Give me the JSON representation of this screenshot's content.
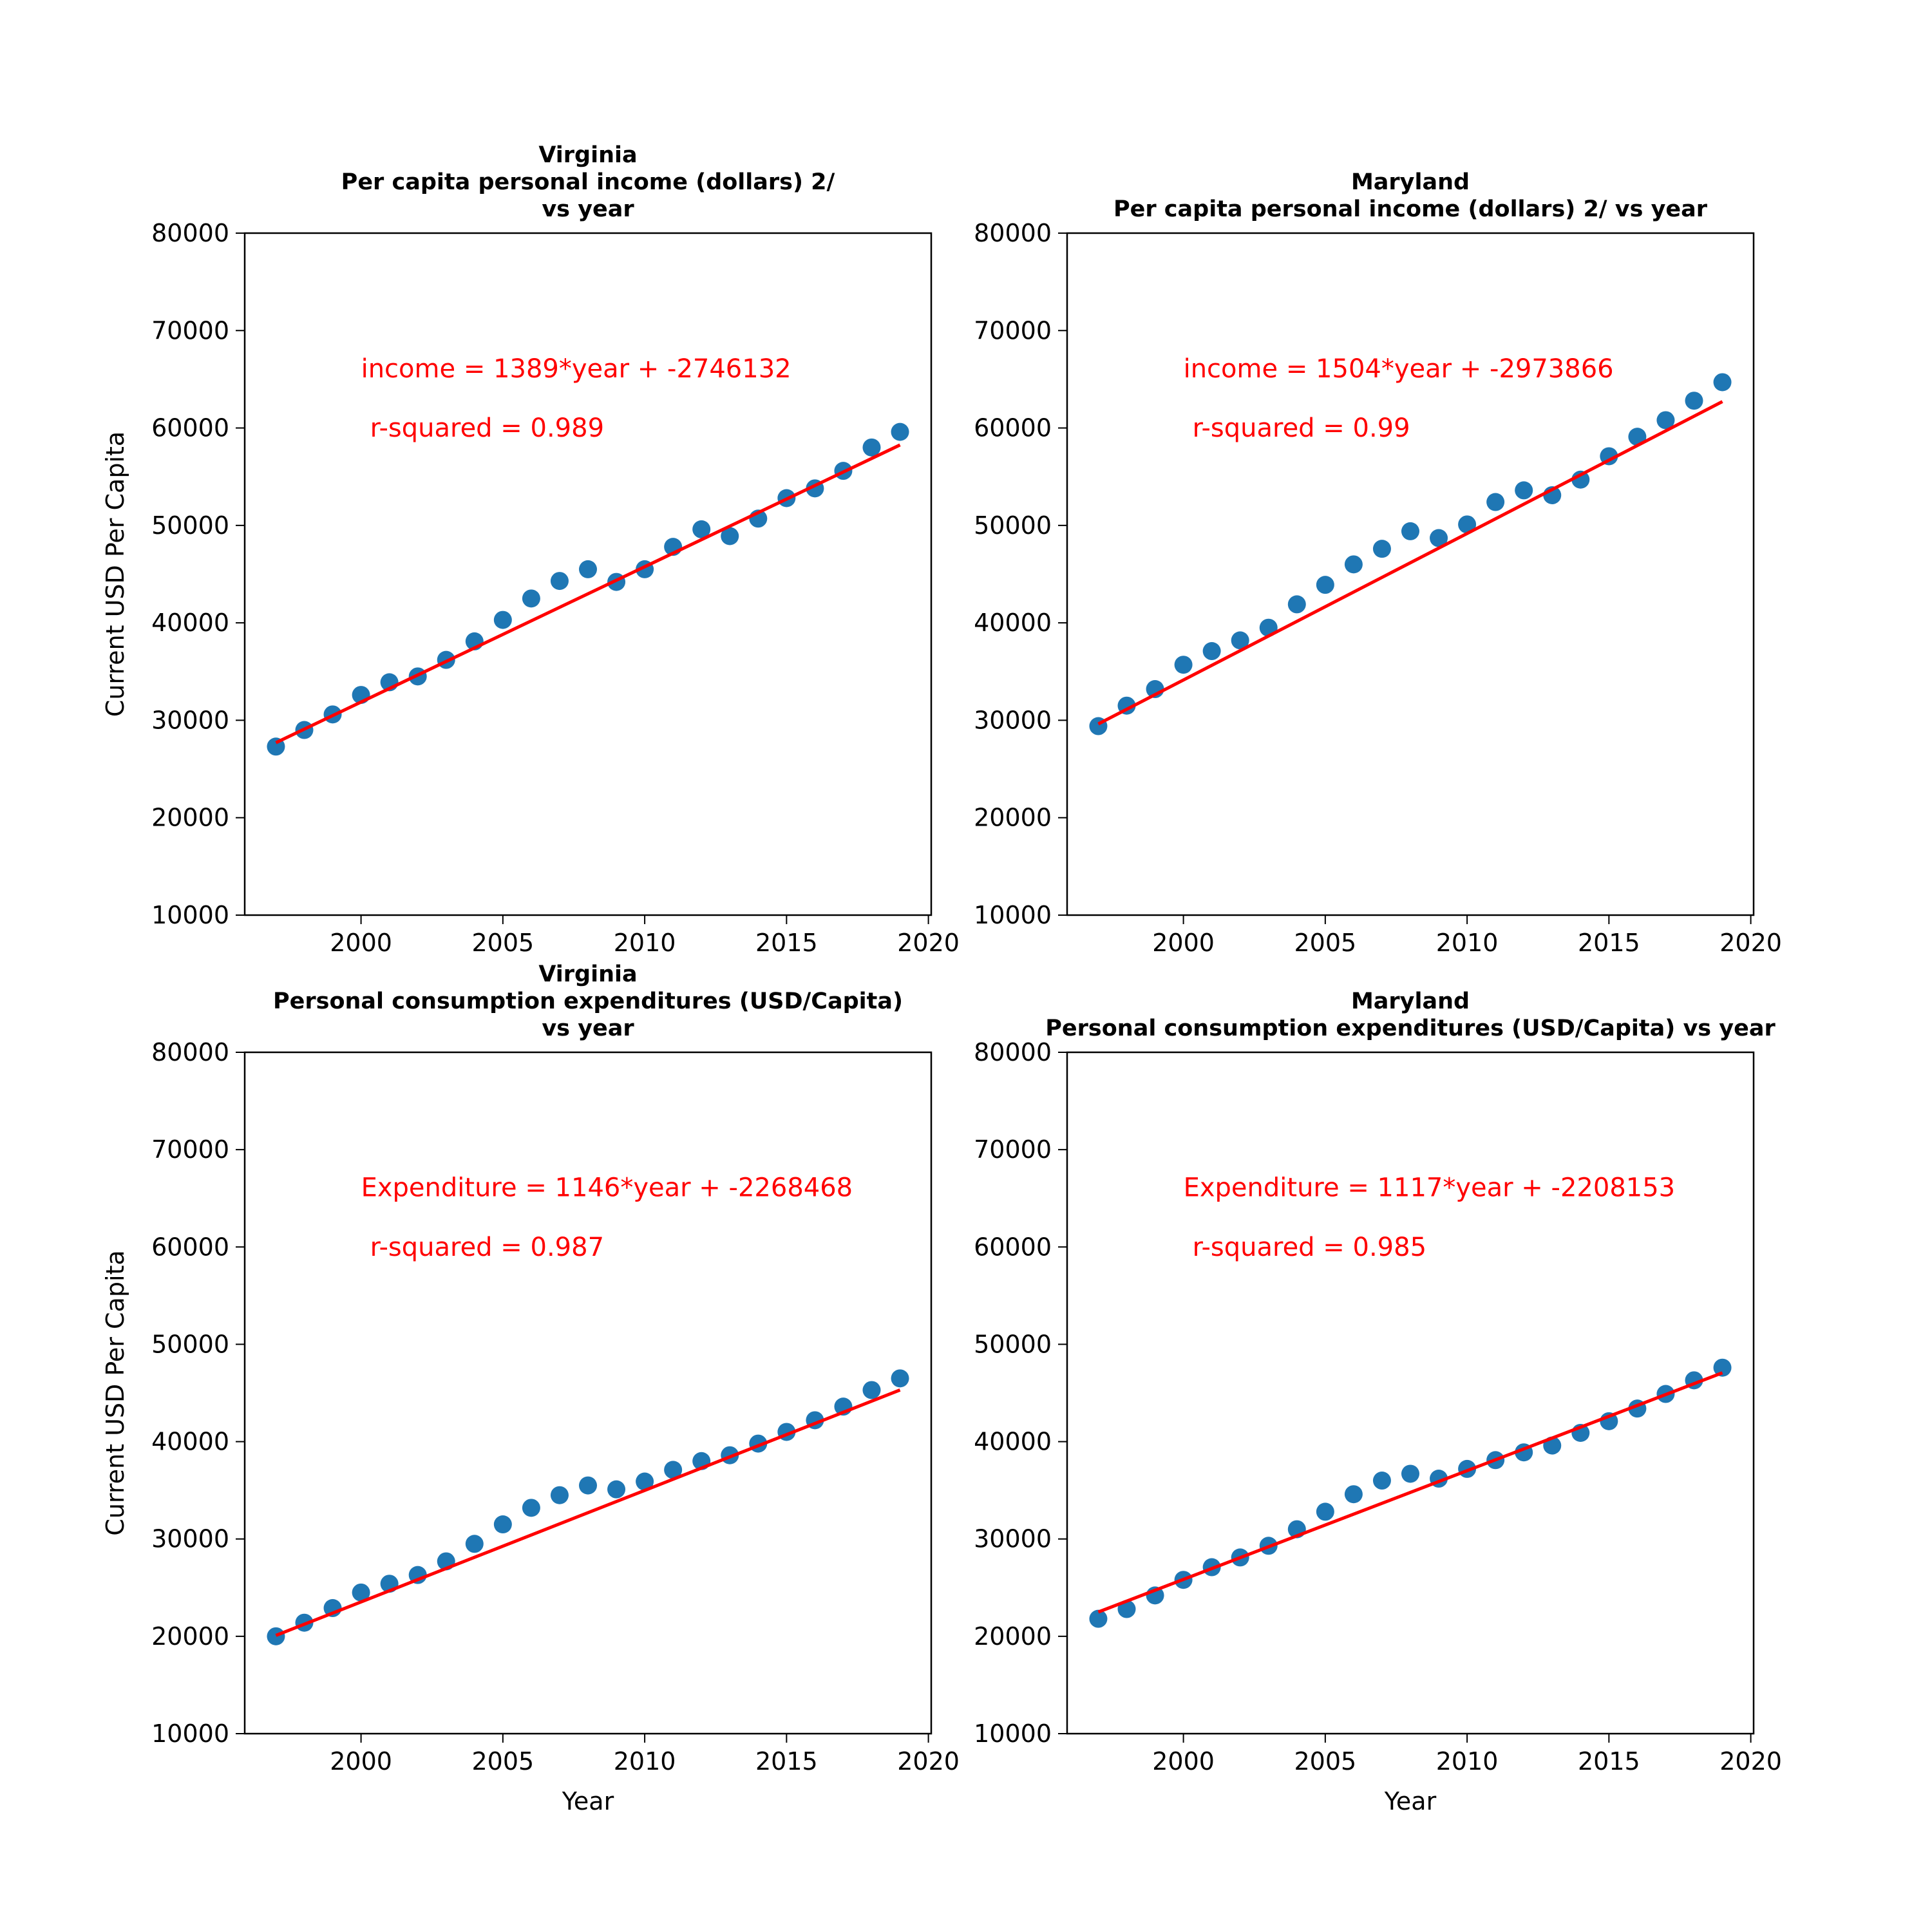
{
  "figure": {
    "background": "#ffffff",
    "marker_color": "#1f77b4",
    "fit_color": "#ff0000"
  },
  "chart_data": [
    {
      "type": "scatter",
      "title": [
        "Virginia",
        "Per capita personal income (dollars) 2/",
        "vs year"
      ],
      "xlabel": "",
      "ylabel": "Current USD Per Capita",
      "xlim": [
        1995.9,
        2020.1
      ],
      "ylim": [
        10000,
        80000
      ],
      "xticks": [
        2000,
        2005,
        2010,
        2015,
        2020
      ],
      "yticks": [
        10000,
        20000,
        30000,
        40000,
        50000,
        60000,
        70000,
        80000
      ],
      "grid": false,
      "series": [
        {
          "x": [
            1997,
            1998,
            1999,
            2000,
            2001,
            2002,
            2003,
            2004,
            2005,
            2006,
            2007,
            2008,
            2009,
            2010,
            2011,
            2012,
            2013,
            2014,
            2015,
            2016,
            2017,
            2018,
            2019
          ],
          "y": [
            27300,
            29000,
            30600,
            32600,
            33900,
            34500,
            36200,
            38100,
            40300,
            42500,
            44300,
            45500,
            44200,
            45500,
            47800,
            49600,
            48900,
            50700,
            52800,
            53800,
            55600,
            58000,
            59600
          ]
        }
      ],
      "fit": {
        "slope": 1389,
        "intercept": -2746132
      },
      "annotations": [
        "income = 1389*year + -2746132",
        "r-squared = 0.989"
      ]
    },
    {
      "type": "scatter",
      "title": [
        "Maryland",
        "Per capita personal income (dollars) 2/ vs year"
      ],
      "xlabel": "",
      "ylabel": "",
      "xlim": [
        1995.9,
        2020.1
      ],
      "ylim": [
        10000,
        80000
      ],
      "xticks": [
        2000,
        2005,
        2010,
        2015,
        2020
      ],
      "yticks": [
        10000,
        20000,
        30000,
        40000,
        50000,
        60000,
        70000,
        80000
      ],
      "grid": false,
      "series": [
        {
          "x": [
            1997,
            1998,
            1999,
            2000,
            2001,
            2002,
            2003,
            2004,
            2005,
            2006,
            2007,
            2008,
            2009,
            2010,
            2011,
            2012,
            2013,
            2014,
            2015,
            2016,
            2017,
            2018,
            2019
          ],
          "y": [
            29400,
            31500,
            33200,
            35700,
            37100,
            38200,
            39500,
            41900,
            43900,
            46000,
            47600,
            49400,
            48700,
            50100,
            52400,
            53600,
            53100,
            54700,
            57100,
            59100,
            60800,
            62800,
            64700
          ]
        }
      ],
      "fit": {
        "slope": 1504,
        "intercept": -2973866
      },
      "annotations": [
        "income = 1504*year + -2973866",
        "r-squared = 0.99"
      ]
    },
    {
      "type": "scatter",
      "title": [
        "Virginia",
        "Personal consumption expenditures (USD/Capita)",
        "vs year"
      ],
      "xlabel": "Year",
      "ylabel": "Current USD Per Capita",
      "xlim": [
        1995.9,
        2020.1
      ],
      "ylim": [
        10000,
        80000
      ],
      "xticks": [
        2000,
        2005,
        2010,
        2015,
        2020
      ],
      "yticks": [
        10000,
        20000,
        30000,
        40000,
        50000,
        60000,
        70000,
        80000
      ],
      "grid": false,
      "series": [
        {
          "x": [
            1997,
            1998,
            1999,
            2000,
            2001,
            2002,
            2003,
            2004,
            2005,
            2006,
            2007,
            2008,
            2009,
            2010,
            2011,
            2012,
            2013,
            2014,
            2015,
            2016,
            2017,
            2018,
            2019
          ],
          "y": [
            20000,
            21400,
            22900,
            24500,
            25400,
            26300,
            27700,
            29500,
            31500,
            33200,
            34500,
            35500,
            35100,
            35900,
            37100,
            38000,
            38600,
            39800,
            41000,
            42200,
            43600,
            45300,
            46500
          ]
        }
      ],
      "fit": {
        "slope": 1146,
        "intercept": -2268468
      },
      "annotations": [
        "Expenditure = 1146*year + -2268468",
        "r-squared = 0.987"
      ]
    },
    {
      "type": "scatter",
      "title": [
        "Maryland",
        "Personal consumption expenditures (USD/Capita) vs year"
      ],
      "xlabel": "Year",
      "ylabel": "",
      "xlim": [
        1995.9,
        2020.1
      ],
      "ylim": [
        10000,
        80000
      ],
      "xticks": [
        2000,
        2005,
        2010,
        2015,
        2020
      ],
      "yticks": [
        10000,
        20000,
        30000,
        40000,
        50000,
        60000,
        70000,
        80000
      ],
      "grid": false,
      "series": [
        {
          "x": [
            1997,
            1998,
            1999,
            2000,
            2001,
            2002,
            2003,
            2004,
            2005,
            2006,
            2007,
            2008,
            2009,
            2010,
            2011,
            2012,
            2013,
            2014,
            2015,
            2016,
            2017,
            2018,
            2019
          ],
          "y": [
            21800,
            22800,
            24200,
            25800,
            27100,
            28100,
            29300,
            31000,
            32800,
            34600,
            36000,
            36700,
            36200,
            37200,
            38100,
            38900,
            39600,
            40900,
            42100,
            43400,
            44900,
            46300,
            47600
          ]
        }
      ],
      "fit": {
        "slope": 1117,
        "intercept": -2208153
      },
      "annotations": [
        "Expenditure = 1117*year + -2208153",
        "r-squared = 0.985"
      ]
    }
  ]
}
